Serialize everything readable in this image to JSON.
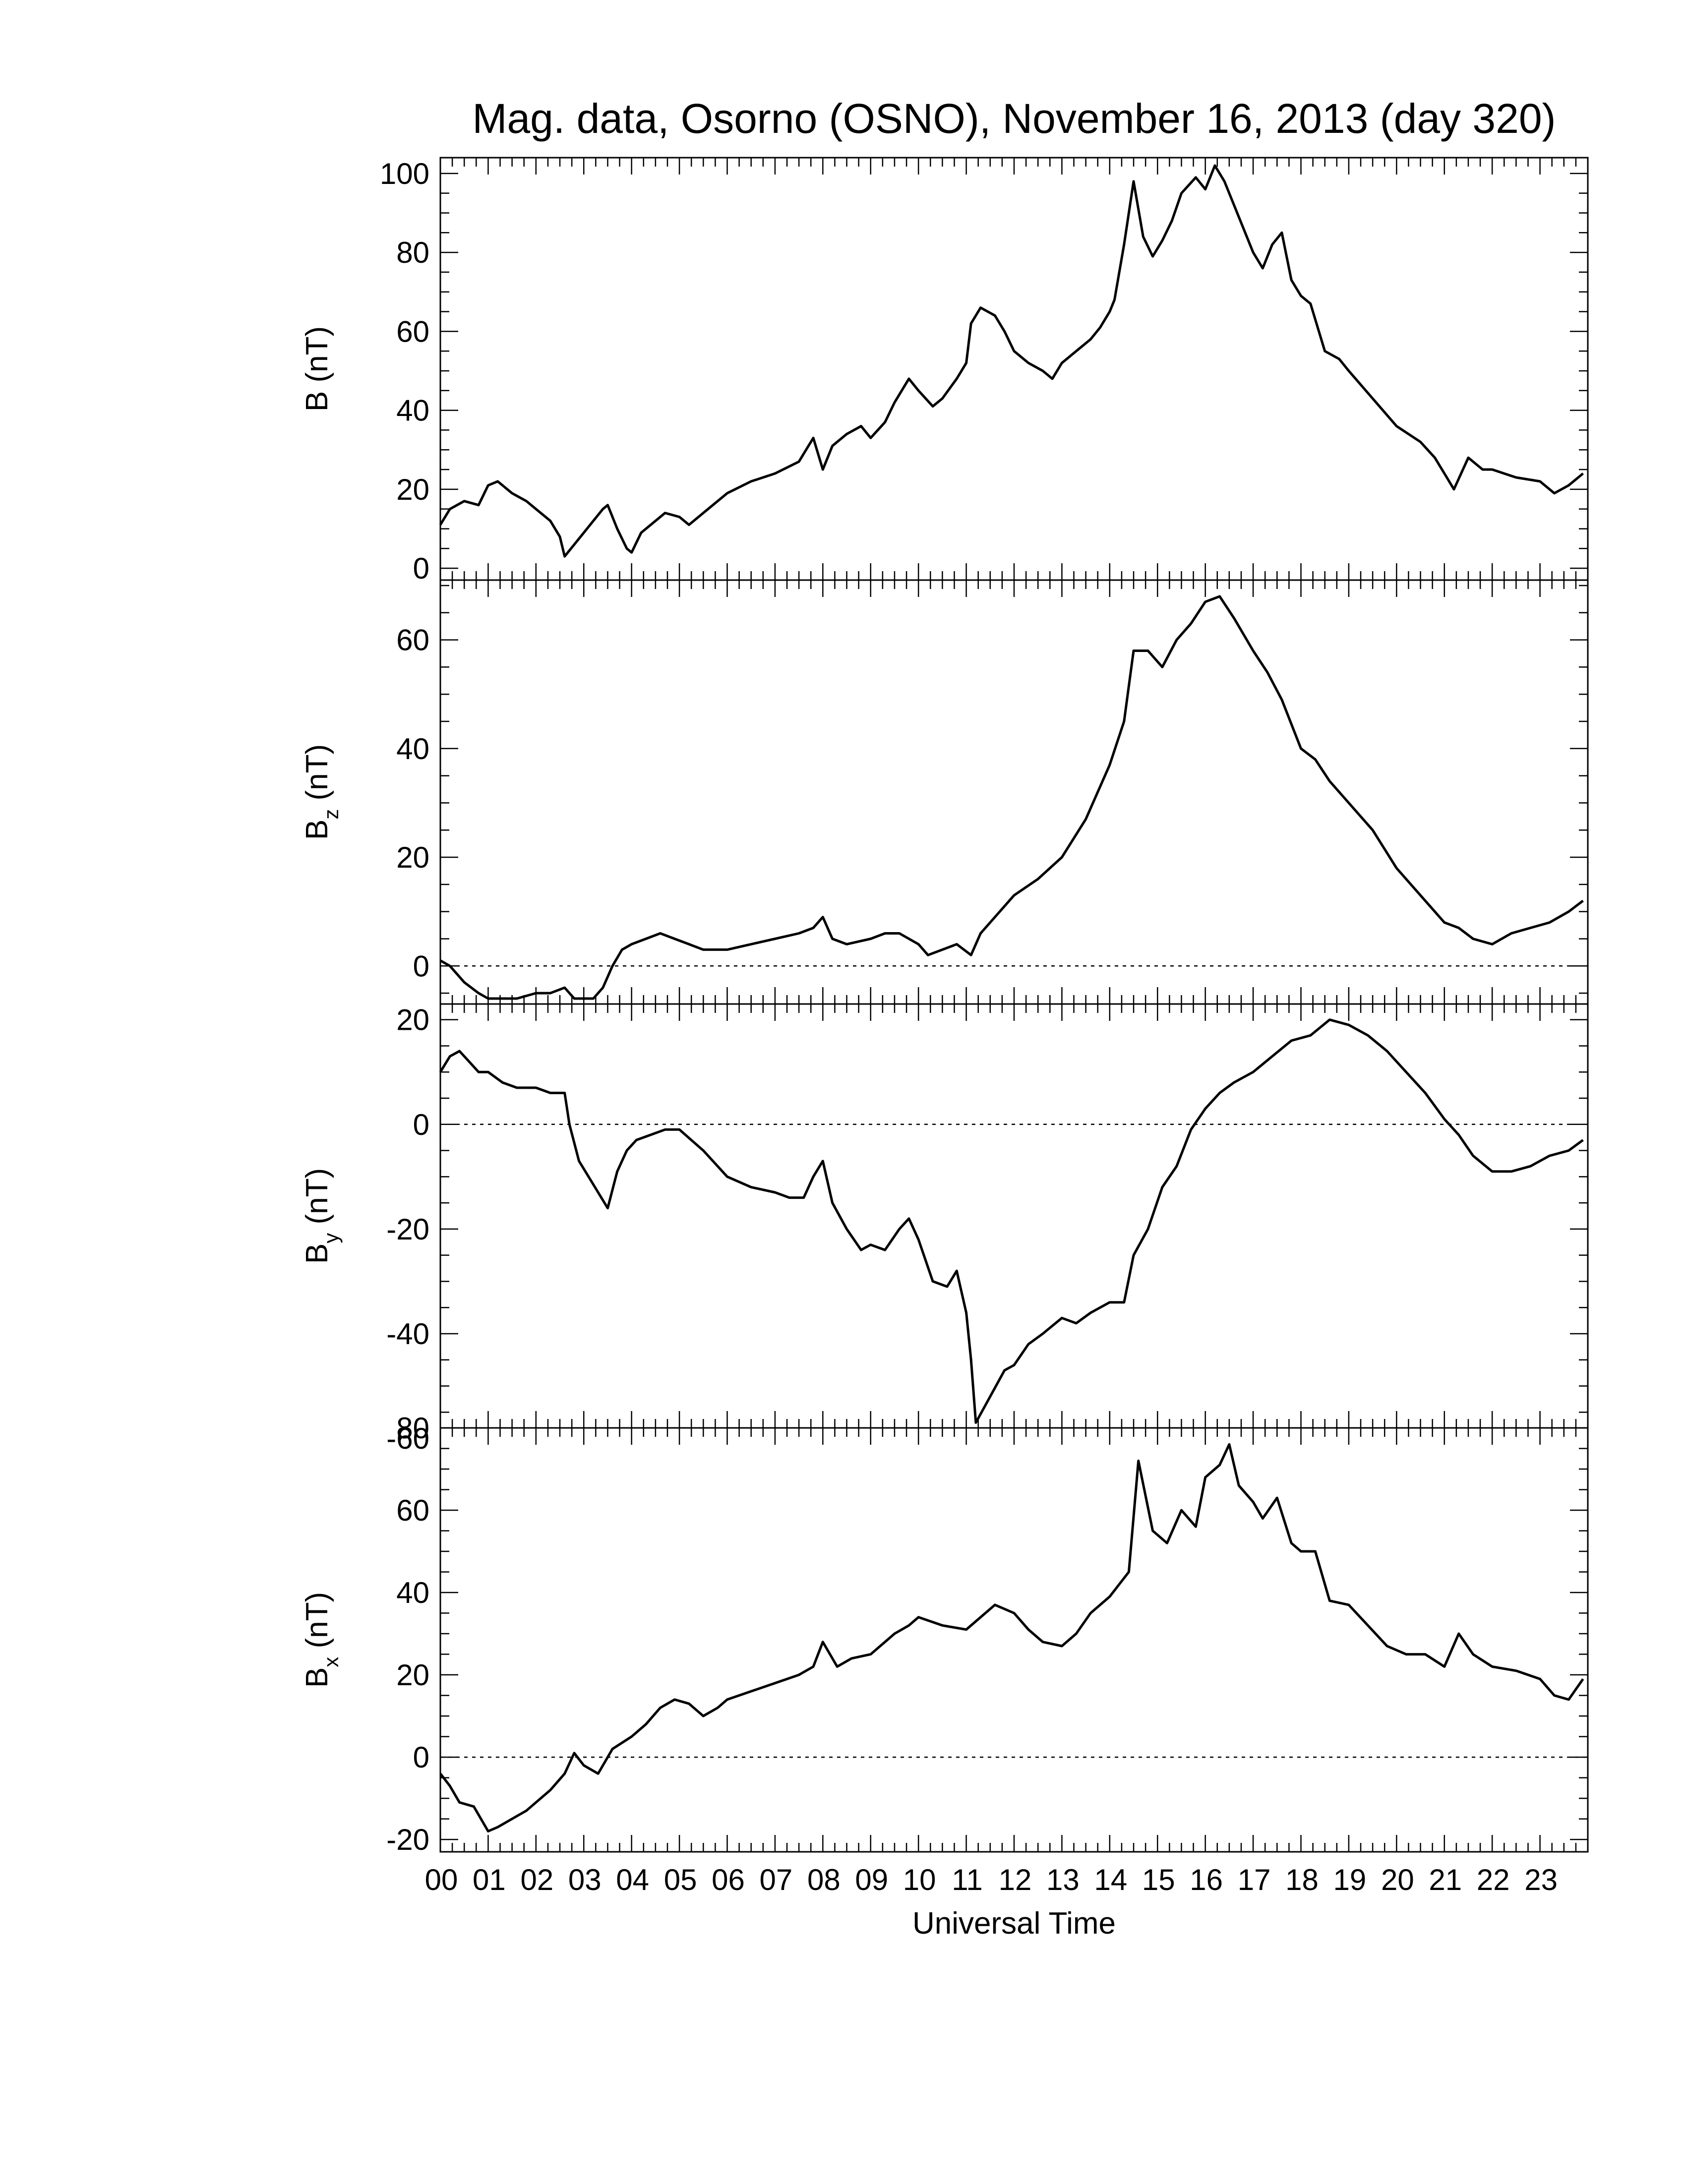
{
  "chart_data": {
    "type": "line",
    "title": "Mag. data, Osorno (OSNO), November 16, 2013 (day 320)",
    "xlabel": "Universal Time",
    "xlim": [
      0,
      24
    ],
    "x_ticks": [
      "00",
      "01",
      "02",
      "03",
      "04",
      "05",
      "06",
      "07",
      "08",
      "09",
      "10",
      "11",
      "12",
      "13",
      "14",
      "15",
      "16",
      "17",
      "18",
      "19",
      "20",
      "21",
      "22",
      "23"
    ],
    "panels": [
      {
        "ylabel_main": "B",
        "ylabel_sub": "",
        "ylabel_unit": "(nT)",
        "ylim": [
          -3,
          104
        ],
        "yticks": [
          0,
          20,
          40,
          60,
          80,
          100
        ],
        "ytick_labels": [
          "0",
          "20",
          "40",
          "60",
          "80",
          "100"
        ],
        "zero_line": false,
        "x": [
          0,
          0.2,
          0.5,
          0.8,
          1.0,
          1.2,
          1.5,
          1.8,
          2.0,
          2.3,
          2.5,
          2.6,
          2.8,
          3.0,
          3.2,
          3.4,
          3.5,
          3.7,
          3.9,
          4.0,
          4.2,
          4.5,
          4.7,
          5.0,
          5.2,
          5.5,
          5.8,
          6.0,
          6.5,
          7.0,
          7.5,
          7.8,
          8.0,
          8.2,
          8.5,
          8.8,
          9.0,
          9.3,
          9.5,
          9.8,
          10.0,
          10.3,
          10.5,
          10.8,
          11.0,
          11.1,
          11.3,
          11.6,
          11.8,
          12.0,
          12.3,
          12.6,
          12.8,
          13.0,
          13.3,
          13.6,
          13.8,
          14.0,
          14.1,
          14.3,
          14.5,
          14.7,
          14.9,
          15.1,
          15.3,
          15.5,
          15.8,
          16.0,
          16.2,
          16.4,
          16.6,
          16.8,
          17.0,
          17.2,
          17.4,
          17.6,
          17.8,
          18.0,
          18.2,
          18.5,
          18.8,
          19.0,
          19.5,
          20.0,
          20.5,
          20.8,
          21.0,
          21.2,
          21.5,
          21.8,
          22.0,
          22.5,
          23.0,
          23.3,
          23.6,
          23.9
        ],
        "y": [
          11,
          15,
          17,
          16,
          21,
          22,
          19,
          17,
          15,
          12,
          8,
          3,
          6,
          9,
          12,
          15,
          16,
          10,
          5,
          4,
          9,
          12,
          14,
          13,
          11,
          14,
          17,
          19,
          22,
          24,
          27,
          33,
          25,
          31,
          34,
          36,
          33,
          37,
          42,
          48,
          45,
          41,
          43,
          48,
          52,
          62,
          66,
          64,
          60,
          55,
          52,
          50,
          48,
          52,
          55,
          58,
          61,
          65,
          68,
          82,
          98,
          84,
          79,
          83,
          88,
          95,
          99,
          96,
          102,
          98,
          92,
          86,
          80,
          76,
          82,
          85,
          73,
          69,
          67,
          55,
          53,
          50,
          43,
          36,
          32,
          28,
          24,
          20,
          28,
          25,
          25,
          23,
          22,
          19,
          21,
          24
        ]
      },
      {
        "ylabel_main": "B",
        "ylabel_sub": "z",
        "ylabel_unit": "(nT)",
        "ylim": [
          -7,
          71
        ],
        "yticks": [
          0,
          20,
          40,
          60
        ],
        "ytick_labels": [
          "0",
          "20",
          "40",
          "60"
        ],
        "zero_line": true,
        "x": [
          0,
          0.2,
          0.5,
          0.8,
          1.0,
          1.3,
          1.6,
          2.0,
          2.3,
          2.6,
          2.8,
          3.0,
          3.2,
          3.4,
          3.6,
          3.8,
          4.0,
          4.3,
          4.6,
          4.9,
          5.2,
          5.5,
          6.0,
          6.5,
          7.0,
          7.5,
          7.8,
          8.0,
          8.2,
          8.5,
          9.0,
          9.3,
          9.6,
          10.0,
          10.2,
          10.5,
          10.8,
          11.1,
          11.3,
          11.6,
          12.0,
          12.5,
          13.0,
          13.5,
          14.0,
          14.3,
          14.5,
          14.8,
          15.1,
          15.4,
          15.7,
          16.0,
          16.3,
          16.6,
          17.0,
          17.3,
          17.6,
          18.0,
          18.3,
          18.6,
          19.0,
          19.5,
          20.0,
          20.5,
          21.0,
          21.3,
          21.6,
          22.0,
          22.4,
          22.8,
          23.2,
          23.6,
          23.9
        ],
        "y": [
          1,
          0,
          -3,
          -5,
          -6,
          -6,
          -6,
          -5,
          -5,
          -4,
          -6,
          -6,
          -6,
          -4,
          0,
          3,
          4,
          5,
          6,
          5,
          4,
          3,
          3,
          4,
          5,
          6,
          7,
          9,
          5,
          4,
          5,
          6,
          6,
          4,
          2,
          3,
          4,
          2,
          6,
          9,
          13,
          16,
          20,
          27,
          37,
          45,
          58,
          58,
          55,
          60,
          63,
          67,
          68,
          64,
          58,
          54,
          49,
          40,
          38,
          34,
          30,
          25,
          18,
          13,
          8,
          7,
          5,
          4,
          6,
          7,
          8,
          10,
          12
        ]
      },
      {
        "ylabel_main": "B",
        "ylabel_sub": "y",
        "ylabel_unit": "(nT)",
        "ylim": [
          -58,
          23
        ],
        "yticks": [
          -60,
          -40,
          -20,
          0,
          20
        ],
        "ytick_labels": [
          "-60",
          "-40",
          "-20",
          "0",
          "20"
        ],
        "zero_line": true,
        "x": [
          0,
          0.2,
          0.4,
          0.6,
          0.8,
          1.0,
          1.3,
          1.6,
          2.0,
          2.3,
          2.6,
          2.7,
          2.9,
          3.1,
          3.3,
          3.5,
          3.7,
          3.9,
          4.1,
          4.4,
          4.7,
          5.0,
          5.5,
          6.0,
          6.5,
          7.0,
          7.3,
          7.6,
          7.8,
          8.0,
          8.2,
          8.5,
          8.8,
          9.0,
          9.3,
          9.6,
          9.8,
          10.0,
          10.3,
          10.6,
          10.8,
          11.0,
          11.1,
          11.2,
          11.5,
          11.8,
          12.0,
          12.3,
          12.6,
          13.0,
          13.3,
          13.6,
          14.0,
          14.3,
          14.5,
          14.8,
          15.1,
          15.4,
          15.7,
          16.0,
          16.3,
          16.6,
          17.0,
          17.4,
          17.8,
          18.2,
          18.6,
          19.0,
          19.4,
          19.8,
          20.2,
          20.6,
          21.0,
          21.3,
          21.6,
          22.0,
          22.4,
          22.8,
          23.2,
          23.6,
          23.9
        ],
        "y": [
          10,
          13,
          14,
          12,
          10,
          10,
          8,
          7,
          7,
          6,
          6,
          0,
          -7,
          -10,
          -13,
          -16,
          -9,
          -5,
          -3,
          -2,
          -1,
          -1,
          -5,
          -10,
          -12,
          -13,
          -14,
          -14,
          -10,
          -7,
          -15,
          -20,
          -24,
          -23,
          -24,
          -20,
          -18,
          -22,
          -30,
          -31,
          -28,
          -36,
          -45,
          -57,
          -52,
          -47,
          -46,
          -42,
          -40,
          -37,
          -38,
          -36,
          -34,
          -34,
          -25,
          -20,
          -12,
          -8,
          -1,
          3,
          6,
          8,
          10,
          13,
          16,
          17,
          20,
          19,
          17,
          14,
          10,
          6,
          1,
          -2,
          -6,
          -9,
          -9,
          -8,
          -6,
          -5,
          -3
        ]
      },
      {
        "ylabel_main": "B",
        "ylabel_sub": "x",
        "ylabel_unit": "(nT)",
        "ylim": [
          -23,
          80
        ],
        "yticks": [
          -20,
          0,
          20,
          40,
          60,
          80
        ],
        "ytick_labels": [
          "-20",
          "0",
          "20",
          "40",
          "60",
          "80"
        ],
        "zero_line": true,
        "x": [
          0,
          0.2,
          0.4,
          0.7,
          1.0,
          1.2,
          1.5,
          1.8,
          2.0,
          2.3,
          2.6,
          2.8,
          3.0,
          3.3,
          3.6,
          4.0,
          4.3,
          4.6,
          4.9,
          5.2,
          5.5,
          5.8,
          6.0,
          6.5,
          7.0,
          7.5,
          7.8,
          8.0,
          8.3,
          8.6,
          9.0,
          9.3,
          9.5,
          9.8,
          10.0,
          10.5,
          11.0,
          11.3,
          11.6,
          12.0,
          12.3,
          12.6,
          13.0,
          13.3,
          13.6,
          14.0,
          14.2,
          14.4,
          14.6,
          14.9,
          15.2,
          15.5,
          15.8,
          16.0,
          16.3,
          16.5,
          16.7,
          17.0,
          17.2,
          17.5,
          17.8,
          18.0,
          18.3,
          18.6,
          19.0,
          19.4,
          19.8,
          20.2,
          20.6,
          21.0,
          21.3,
          21.6,
          22.0,
          22.5,
          23.0,
          23.3,
          23.6,
          23.9
        ],
        "y": [
          -4,
          -7,
          -11,
          -12,
          -18,
          -17,
          -15,
          -13,
          -11,
          -8,
          -4,
          1,
          -2,
          -4,
          2,
          5,
          8,
          12,
          14,
          13,
          10,
          12,
          14,
          16,
          18,
          20,
          22,
          28,
          22,
          24,
          25,
          28,
          30,
          32,
          34,
          32,
          31,
          34,
          37,
          35,
          31,
          28,
          27,
          30,
          35,
          39,
          42,
          45,
          72,
          55,
          52,
          60,
          56,
          68,
          71,
          76,
          66,
          62,
          58,
          63,
          52,
          50,
          50,
          38,
          37,
          32,
          27,
          25,
          25,
          22,
          30,
          25,
          22,
          21,
          19,
          15,
          14,
          19
        ]
      }
    ]
  }
}
